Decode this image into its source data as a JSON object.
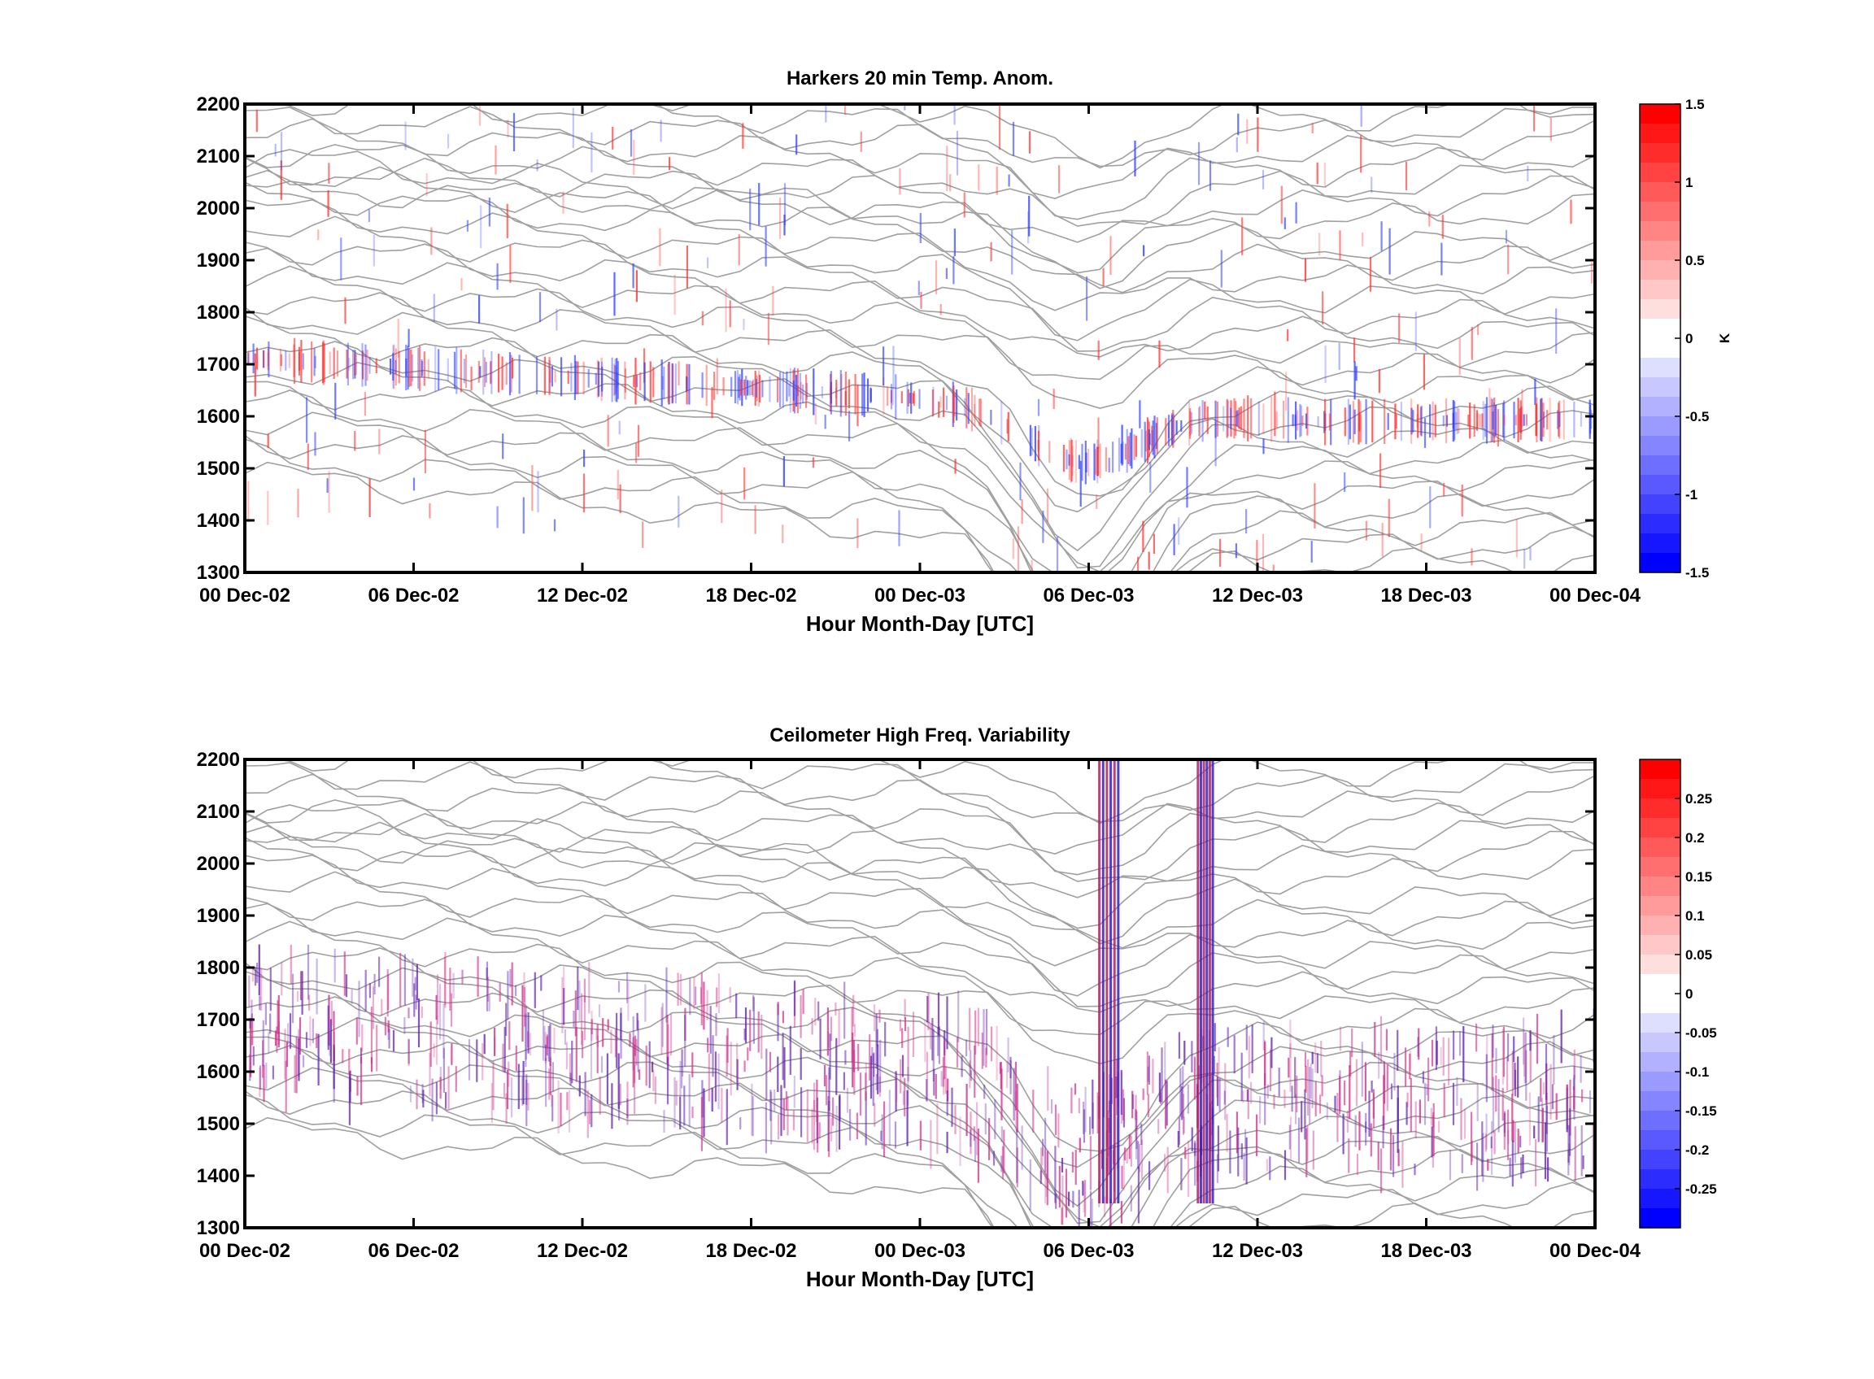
{
  "chart_data": [
    {
      "type": "heatmap",
      "title": "Harkers 20 min Temp. Anom.",
      "xlabel": "Hour Month-Day [UTC]",
      "ylabel": "",
      "x_tick_labels": [
        "00 Dec-02",
        "06 Dec-02",
        "12 Dec-02",
        "18 Dec-02",
        "00 Dec-03",
        "06 Dec-03",
        "12 Dec-03",
        "18 Dec-03",
        "00 Dec-04"
      ],
      "xlim": [
        "00 Dec-02",
        "00 Dec-04"
      ],
      "y_ticks": [
        1300,
        1400,
        1500,
        1600,
        1700,
        1800,
        1900,
        2000,
        2100,
        2200
      ],
      "ylim": [
        1300,
        2200
      ],
      "colorbar": {
        "label": "K",
        "ticks": [
          1.5,
          1,
          0.5,
          0,
          -0.5,
          -1,
          -1.5
        ],
        "range": [
          -1.5,
          1.5
        ],
        "colormap": [
          "#0000ff",
          "#ffffff",
          "#ff0000"
        ]
      },
      "contour_color": "#a0a0a0",
      "grid": false
    },
    {
      "type": "heatmap",
      "title": "Ceilometer High Freq. Variability",
      "xlabel": "Hour Month-Day [UTC]",
      "ylabel": "",
      "x_tick_labels": [
        "00 Dec-02",
        "06 Dec-02",
        "12 Dec-02",
        "18 Dec-02",
        "00 Dec-03",
        "06 Dec-03",
        "12 Dec-03",
        "18 Dec-03",
        "00 Dec-04"
      ],
      "xlim": [
        "00 Dec-02",
        "00 Dec-04"
      ],
      "y_ticks": [
        1300,
        1400,
        1500,
        1600,
        1700,
        1800,
        1900,
        2000,
        2100,
        2200
      ],
      "ylim": [
        1300,
        2200
      ],
      "colorbar": {
        "label": "",
        "ticks": [
          0.25,
          0.2,
          0.15,
          0.1,
          0.05,
          0,
          -0.05,
          -0.1,
          -0.15,
          -0.2,
          -0.25
        ],
        "range": [
          -0.3,
          0.3
        ],
        "colormap": [
          "#0000ff",
          "#ffffff",
          "#ff0000"
        ]
      },
      "contour_color": "#a0a0a0",
      "grid": false
    }
  ]
}
